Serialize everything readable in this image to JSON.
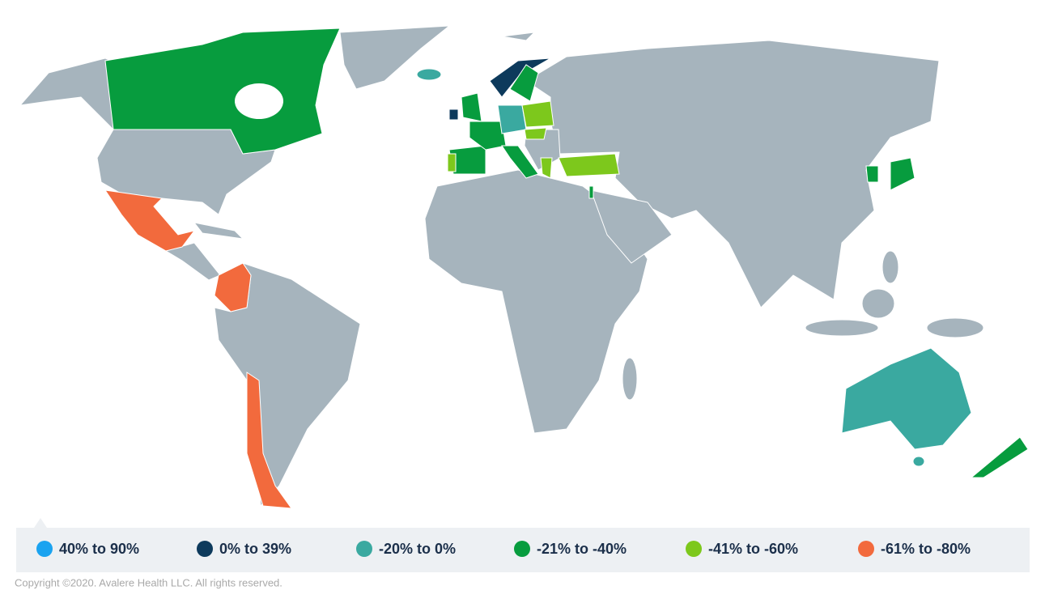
{
  "legend": {
    "items": [
      {
        "label": "40% to 90%",
        "color": "#1aa3f0"
      },
      {
        "label": "0% to 39%",
        "color": "#0d3a5c"
      },
      {
        "label": "-20% to 0%",
        "color": "#3aa9a0"
      },
      {
        "label": "-21% to -40%",
        "color": "#079c3e"
      },
      {
        "label": "-41% to -60%",
        "color": "#7dc81c"
      },
      {
        "label": "-61% to -80%",
        "color": "#f26a3d"
      }
    ]
  },
  "footer": {
    "copyright": "Copyright ©2020. Avalere Health LLC. All rights reserved."
  }
}
